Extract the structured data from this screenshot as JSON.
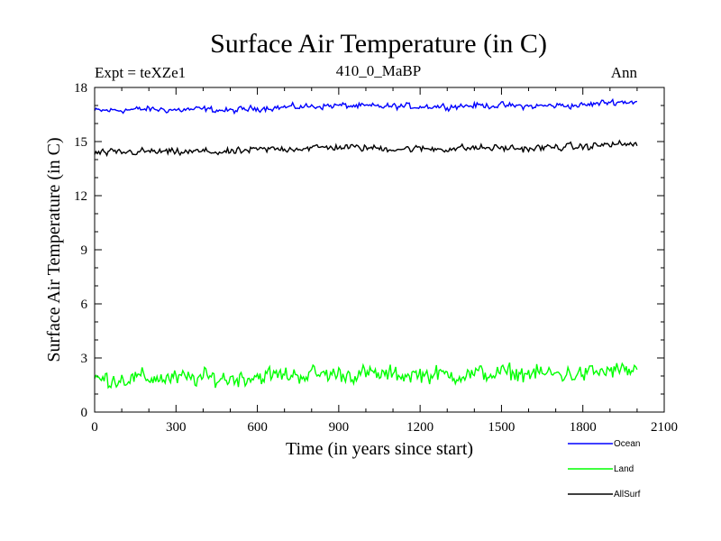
{
  "chart_data": {
    "type": "line",
    "title": "Surface Air Temperature (in C)",
    "subtitle": "410_0_MaBP",
    "expt_label": "Expt = teXZe1",
    "season_label": "Ann",
    "xlabel": "Time (in years since start)",
    "ylabel": "Surface Air Temperature (in C)",
    "xlim": [
      0,
      2100
    ],
    "ylim": [
      0,
      18
    ],
    "xticks": [
      0,
      300,
      600,
      900,
      1200,
      1500,
      1800,
      2100
    ],
    "yticks": [
      0,
      3,
      6,
      9,
      12,
      15,
      18
    ],
    "xtick_labels": [
      "0",
      "300",
      "600",
      "900",
      "1200",
      "1500",
      "1800",
      "2100"
    ],
    "ytick_labels": [
      "0",
      "3",
      "6",
      "9",
      "12",
      "15",
      "18"
    ],
    "x_step": 5,
    "x_end": 2000,
    "series": [
      {
        "name": "Ocean",
        "color": "#0000ff",
        "x_years": [
          0,
          100,
          200,
          300,
          400,
          500,
          600,
          700,
          800,
          900,
          1000,
          1100,
          1200,
          1300,
          1400,
          1500,
          1600,
          1700,
          1800,
          1900,
          2000
        ],
        "mean": [
          16.7,
          16.75,
          16.8,
          16.75,
          16.8,
          16.7,
          16.85,
          16.9,
          16.95,
          17.0,
          16.95,
          16.95,
          16.95,
          16.95,
          17.0,
          17.0,
          16.95,
          17.0,
          17.0,
          17.2,
          17.2
        ],
        "noise_amplitude": 0.35
      },
      {
        "name": "Land",
        "color": "#00ff00",
        "x_years": [
          0,
          100,
          200,
          300,
          400,
          500,
          600,
          700,
          800,
          900,
          1000,
          1100,
          1200,
          1300,
          1400,
          1500,
          1600,
          1700,
          1800,
          1900,
          2000
        ],
        "mean": [
          1.8,
          1.85,
          1.9,
          1.85,
          1.9,
          1.85,
          2.0,
          2.05,
          2.1,
          2.1,
          2.1,
          2.05,
          2.1,
          2.05,
          2.1,
          2.15,
          2.15,
          2.1,
          2.1,
          2.3,
          2.3
        ],
        "noise_amplitude": 1.0
      },
      {
        "name": "AllSurf",
        "color": "#000000",
        "x_years": [
          0,
          100,
          200,
          300,
          400,
          500,
          600,
          700,
          800,
          900,
          1000,
          1100,
          1200,
          1300,
          1400,
          1500,
          1600,
          1700,
          1800,
          1900,
          2000
        ],
        "mean": [
          14.35,
          14.4,
          14.45,
          14.4,
          14.45,
          14.4,
          14.55,
          14.6,
          14.65,
          14.7,
          14.65,
          14.6,
          14.6,
          14.6,
          14.65,
          14.65,
          14.6,
          14.7,
          14.7,
          14.85,
          14.85
        ],
        "noise_amplitude": 0.4
      }
    ],
    "legend": [
      "Ocean",
      "Land",
      "AllSurf"
    ],
    "legend_position": "bottom-right, below plot"
  }
}
